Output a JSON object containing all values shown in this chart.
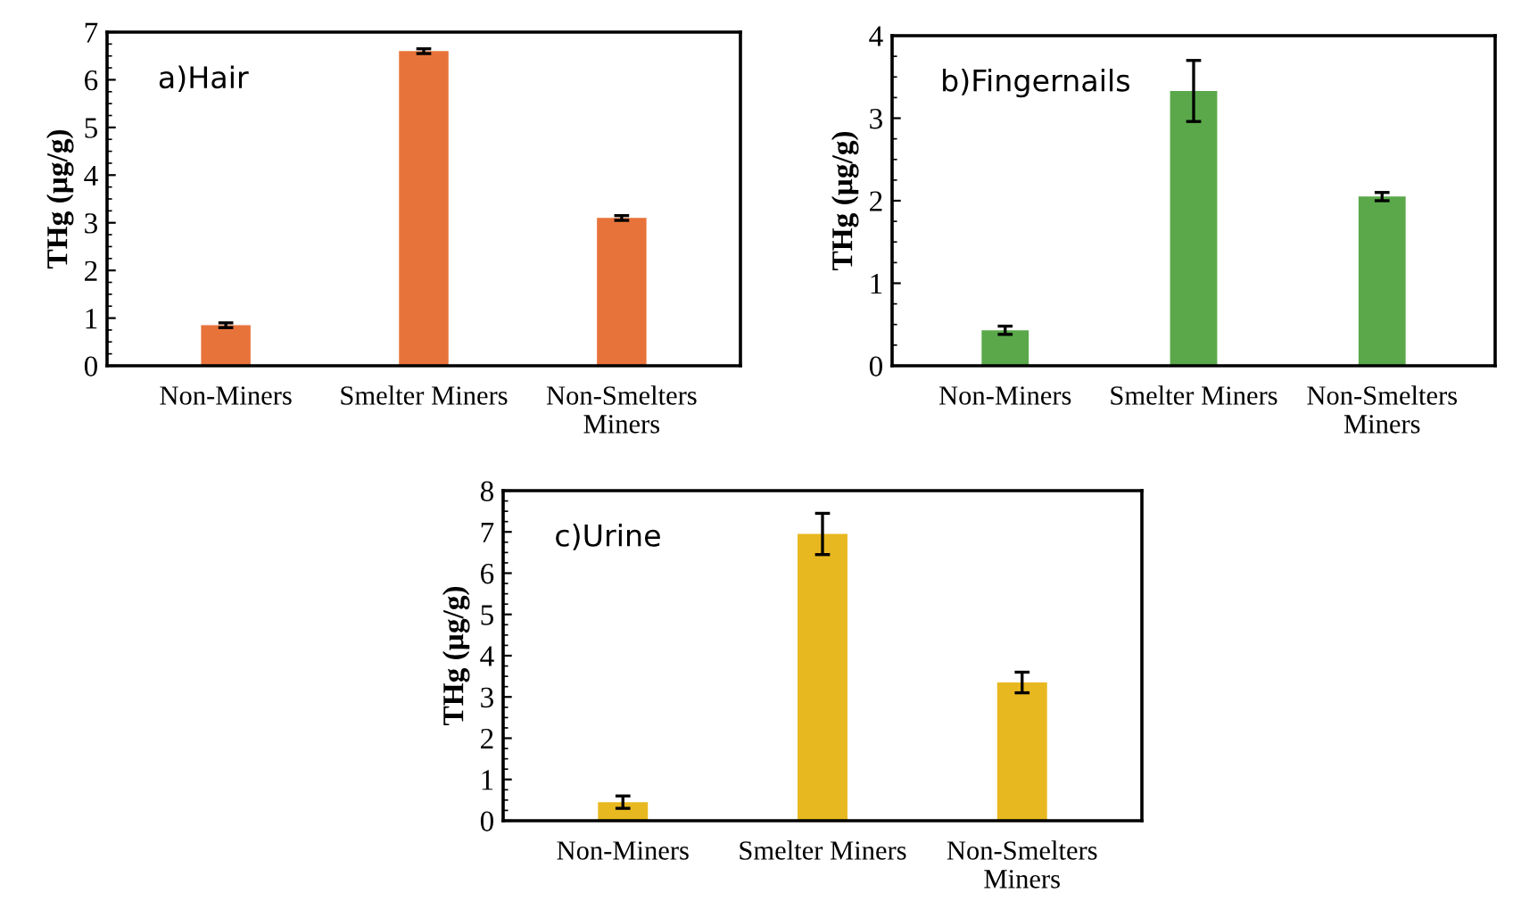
{
  "chart_data": [
    {
      "type": "bar",
      "categories": [
        "Non-Miners",
        "Smelter Miners",
        "Non-Smelters\nMiners"
      ],
      "values": [
        0.85,
        6.6,
        3.1
      ],
      "errors": [
        0.05,
        0.05,
        0.05
      ],
      "color": "#e8733a",
      "ylabel": "THg (µg/g)",
      "ylim": [
        0,
        7
      ],
      "yticks": [
        0,
        1,
        2,
        3,
        4,
        5,
        6,
        7
      ],
      "annotations": [
        "a)Hair"
      ],
      "grid": false,
      "legend": false
    },
    {
      "type": "bar",
      "categories": [
        "Non-Miners",
        "Smelter Miners",
        "Non-Smelters\nMiners"
      ],
      "values": [
        0.43,
        3.33,
        2.05
      ],
      "errors": [
        0.05,
        0.37,
        0.05
      ],
      "color": "#5aa84a",
      "ylabel": "THg (µg/g)",
      "ylim": [
        0,
        4
      ],
      "yticks": [
        0,
        1,
        2,
        3,
        4
      ],
      "annotations": [
        "b)Fingernails"
      ],
      "grid": false,
      "legend": false
    },
    {
      "type": "bar",
      "categories": [
        "Non-Miners",
        "Smelter Miners",
        "Non-Smelters\nMiners"
      ],
      "values": [
        0.45,
        6.95,
        3.35
      ],
      "errors": [
        0.15,
        0.5,
        0.25
      ],
      "color": "#e8b820",
      "ylabel": "THg (µg/g)",
      "ylim": [
        0,
        8
      ],
      "yticks": [
        0,
        1,
        2,
        3,
        4,
        5,
        6,
        7,
        8
      ],
      "annotations": [
        "c)Urine"
      ],
      "grid": false,
      "legend": false
    }
  ]
}
